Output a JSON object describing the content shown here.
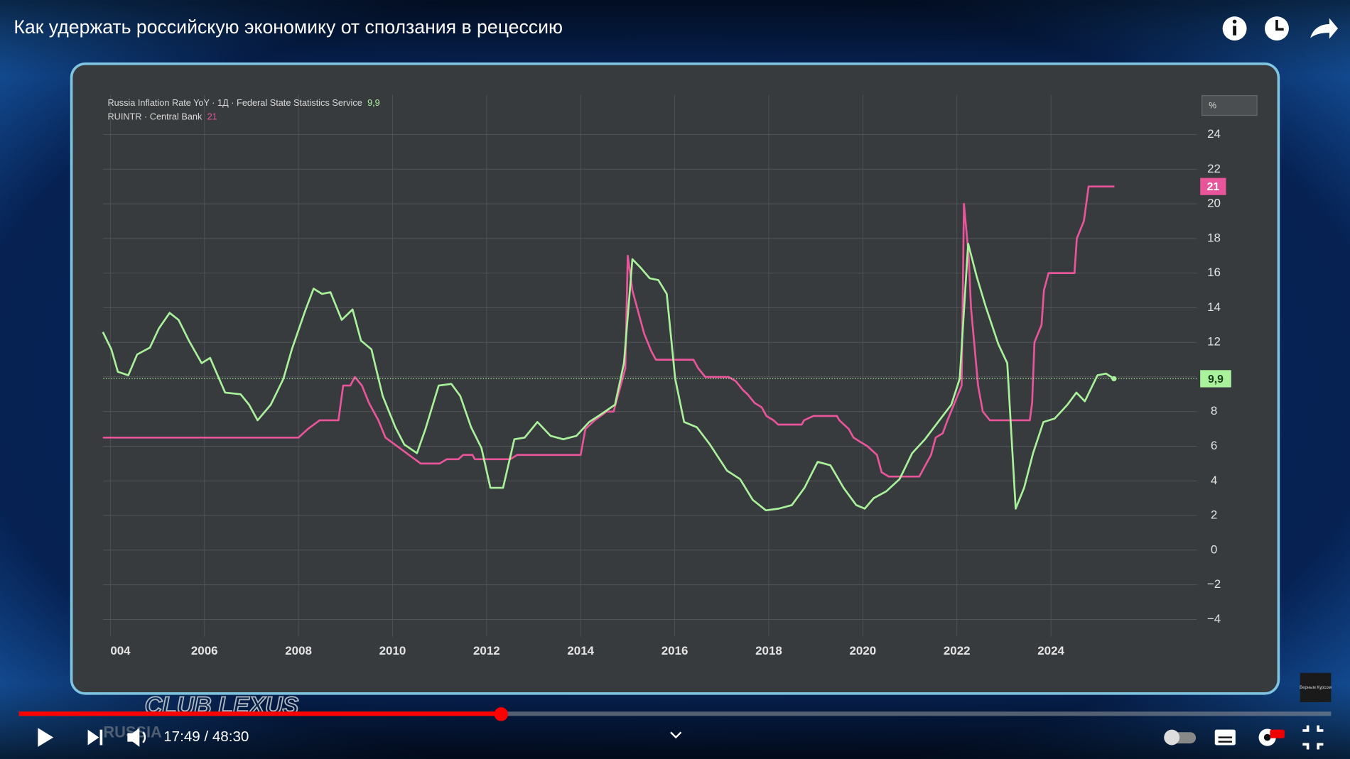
{
  "player": {
    "title": "Как удержать российскую экономику от сползания в рецессию",
    "time": "17:49 / 48:30",
    "watermark": "CLUB LEXUS",
    "watermark_sub": "RUSSIA",
    "channel_logo": "Верным Курсом"
  },
  "chart_data": {
    "type": "line",
    "y_unit": "%",
    "xlim": [
      2003.85,
      2027.1
    ],
    "ylim": [
      -5,
      26.3
    ],
    "xticks": [
      {
        "value": 2004,
        "label": "004"
      },
      2006,
      2008,
      2010,
      2012,
      2014,
      2016,
      2018,
      2020,
      2022,
      2024
    ],
    "yticks": [
      {
        "value": -4,
        "label": "−4"
      },
      {
        "value": -2,
        "label": "−2"
      },
      0,
      2,
      4,
      6,
      8,
      10,
      12,
      14,
      16,
      18,
      20,
      22,
      24
    ],
    "grid": true,
    "series": [
      {
        "name": "Russia Inflation Rate YoY · 1Д · Federal State Statistics Service",
        "color": "#a9f29b",
        "current": {
          "value": 9.9,
          "label": "9,9"
        },
        "x": [
          2003.84,
          2004.02,
          2004.16,
          2004.38,
          2004.57,
          2004.84,
          2005.03,
          2005.26,
          2005.45,
          2005.67,
          2005.94,
          2006.12,
          2006.44,
          2006.77,
          2006.95,
          2007.13,
          2007.41,
          2007.68,
          2007.86,
          2008.14,
          2008.32,
          2008.5,
          2008.68,
          2008.92,
          2009.15,
          2009.33,
          2009.55,
          2009.79,
          2010.06,
          2010.25,
          2010.52,
          2010.7,
          2010.98,
          2011.25,
          2011.44,
          2011.67,
          2011.89,
          2012.08,
          2012.35,
          2012.59,
          2012.81,
          2013.08,
          2013.36,
          2013.63,
          2013.91,
          2014.18,
          2014.46,
          2014.73,
          2014.92,
          2015.1,
          2015.28,
          2015.47,
          2015.65,
          2015.83,
          2016.01,
          2016.2,
          2016.47,
          2016.75,
          2017.11,
          2017.39,
          2017.66,
          2017.94,
          2018.21,
          2018.49,
          2018.76,
          2019.04,
          2019.31,
          2019.59,
          2019.86,
          2020.04,
          2020.23,
          2020.5,
          2020.78,
          2021.05,
          2021.32,
          2021.6,
          2021.88,
          2022.06,
          2022.24,
          2022.42,
          2022.61,
          2022.88,
          2023.07,
          2023.25,
          2023.43,
          2023.62,
          2023.84,
          2024.08,
          2024.35,
          2024.54,
          2024.72,
          2024.99,
          2025.17,
          2025.34
        ],
        "values": [
          12.6,
          11.6,
          10.3,
          10.1,
          11.3,
          11.7,
          12.8,
          13.7,
          13.3,
          12.1,
          10.8,
          11.1,
          9.1,
          9.0,
          8.4,
          7.5,
          8.4,
          9.9,
          11.6,
          13.8,
          15.1,
          14.8,
          14.9,
          13.3,
          13.9,
          12.1,
          11.6,
          8.9,
          7.1,
          6.1,
          5.6,
          7.0,
          9.5,
          9.6,
          8.9,
          7.1,
          5.9,
          3.6,
          3.6,
          6.4,
          6.5,
          7.4,
          6.6,
          6.4,
          6.6,
          7.4,
          7.9,
          8.4,
          10.8,
          16.8,
          16.3,
          15.7,
          15.6,
          14.8,
          9.9,
          7.4,
          7.1,
          6.1,
          4.6,
          4.1,
          2.9,
          2.3,
          2.4,
          2.6,
          3.6,
          5.1,
          4.9,
          3.6,
          2.6,
          2.4,
          3.0,
          3.4,
          4.1,
          5.6,
          6.4,
          7.4,
          8.4,
          9.9,
          17.7,
          15.8,
          14.1,
          11.9,
          10.8,
          2.4,
          3.6,
          5.6,
          7.4,
          7.6,
          8.4,
          9.1,
          8.6,
          10.1,
          10.2,
          9.9
        ]
      },
      {
        "name": "RUINTR · Central Bank",
        "color": "#e8559a",
        "current": {
          "value": 21,
          "label": "21"
        },
        "x": [
          2003.84,
          2008.0,
          2008.2,
          2008.45,
          2008.85,
          2008.95,
          2009.1,
          2009.2,
          2009.35,
          2009.5,
          2009.7,
          2009.85,
          2010.1,
          2010.35,
          2010.6,
          2011.0,
          2011.15,
          2011.4,
          2011.5,
          2011.7,
          2011.75,
          2012.5,
          2012.65,
          2014.0,
          2014.1,
          2014.3,
          2014.55,
          2014.7,
          2014.85,
          2014.95,
          2015.0,
          2015.1,
          2015.2,
          2015.35,
          2015.5,
          2015.6,
          2016.4,
          2016.5,
          2016.65,
          2017.15,
          2017.3,
          2017.45,
          2017.55,
          2017.7,
          2017.85,
          2017.95,
          2018.1,
          2018.2,
          2018.7,
          2018.75,
          2018.95,
          2019.45,
          2019.5,
          2019.6,
          2019.7,
          2019.8,
          2019.95,
          2020.1,
          2020.3,
          2020.4,
          2020.55,
          2021.2,
          2021.25,
          2021.35,
          2021.45,
          2021.55,
          2021.7,
          2021.8,
          2021.95,
          2022.1,
          2022.15,
          2022.25,
          2022.3,
          2022.4,
          2022.45,
          2022.55,
          2022.7,
          2023.55,
          2023.6,
          2023.65,
          2023.8,
          2023.85,
          2023.95,
          2024.5,
          2024.55,
          2024.7,
          2024.8,
          2025.35
        ],
        "values": [
          6.5,
          6.5,
          7.0,
          7.5,
          7.5,
          9.5,
          9.5,
          10.0,
          9.5,
          8.5,
          7.5,
          6.5,
          6.0,
          5.5,
          5.0,
          5.0,
          5.25,
          5.25,
          5.5,
          5.5,
          5.25,
          5.25,
          5.5,
          5.5,
          7.0,
          7.5,
          8.0,
          8.0,
          9.5,
          10.5,
          17.0,
          15.0,
          14.0,
          12.5,
          11.5,
          11.0,
          11.0,
          10.5,
          10.0,
          10.0,
          9.75,
          9.25,
          9.0,
          8.5,
          8.25,
          7.75,
          7.5,
          7.25,
          7.25,
          7.5,
          7.75,
          7.75,
          7.5,
          7.25,
          7.0,
          6.5,
          6.25,
          6.0,
          5.5,
          4.5,
          4.25,
          4.25,
          4.5,
          5.0,
          5.5,
          6.5,
          6.75,
          7.5,
          8.5,
          9.5,
          20.0,
          17.0,
          14.0,
          11.0,
          9.5,
          8.0,
          7.5,
          7.5,
          8.5,
          12.0,
          13.0,
          15.0,
          16.0,
          16.0,
          18.0,
          19.0,
          21.0,
          21.0
        ]
      }
    ]
  }
}
